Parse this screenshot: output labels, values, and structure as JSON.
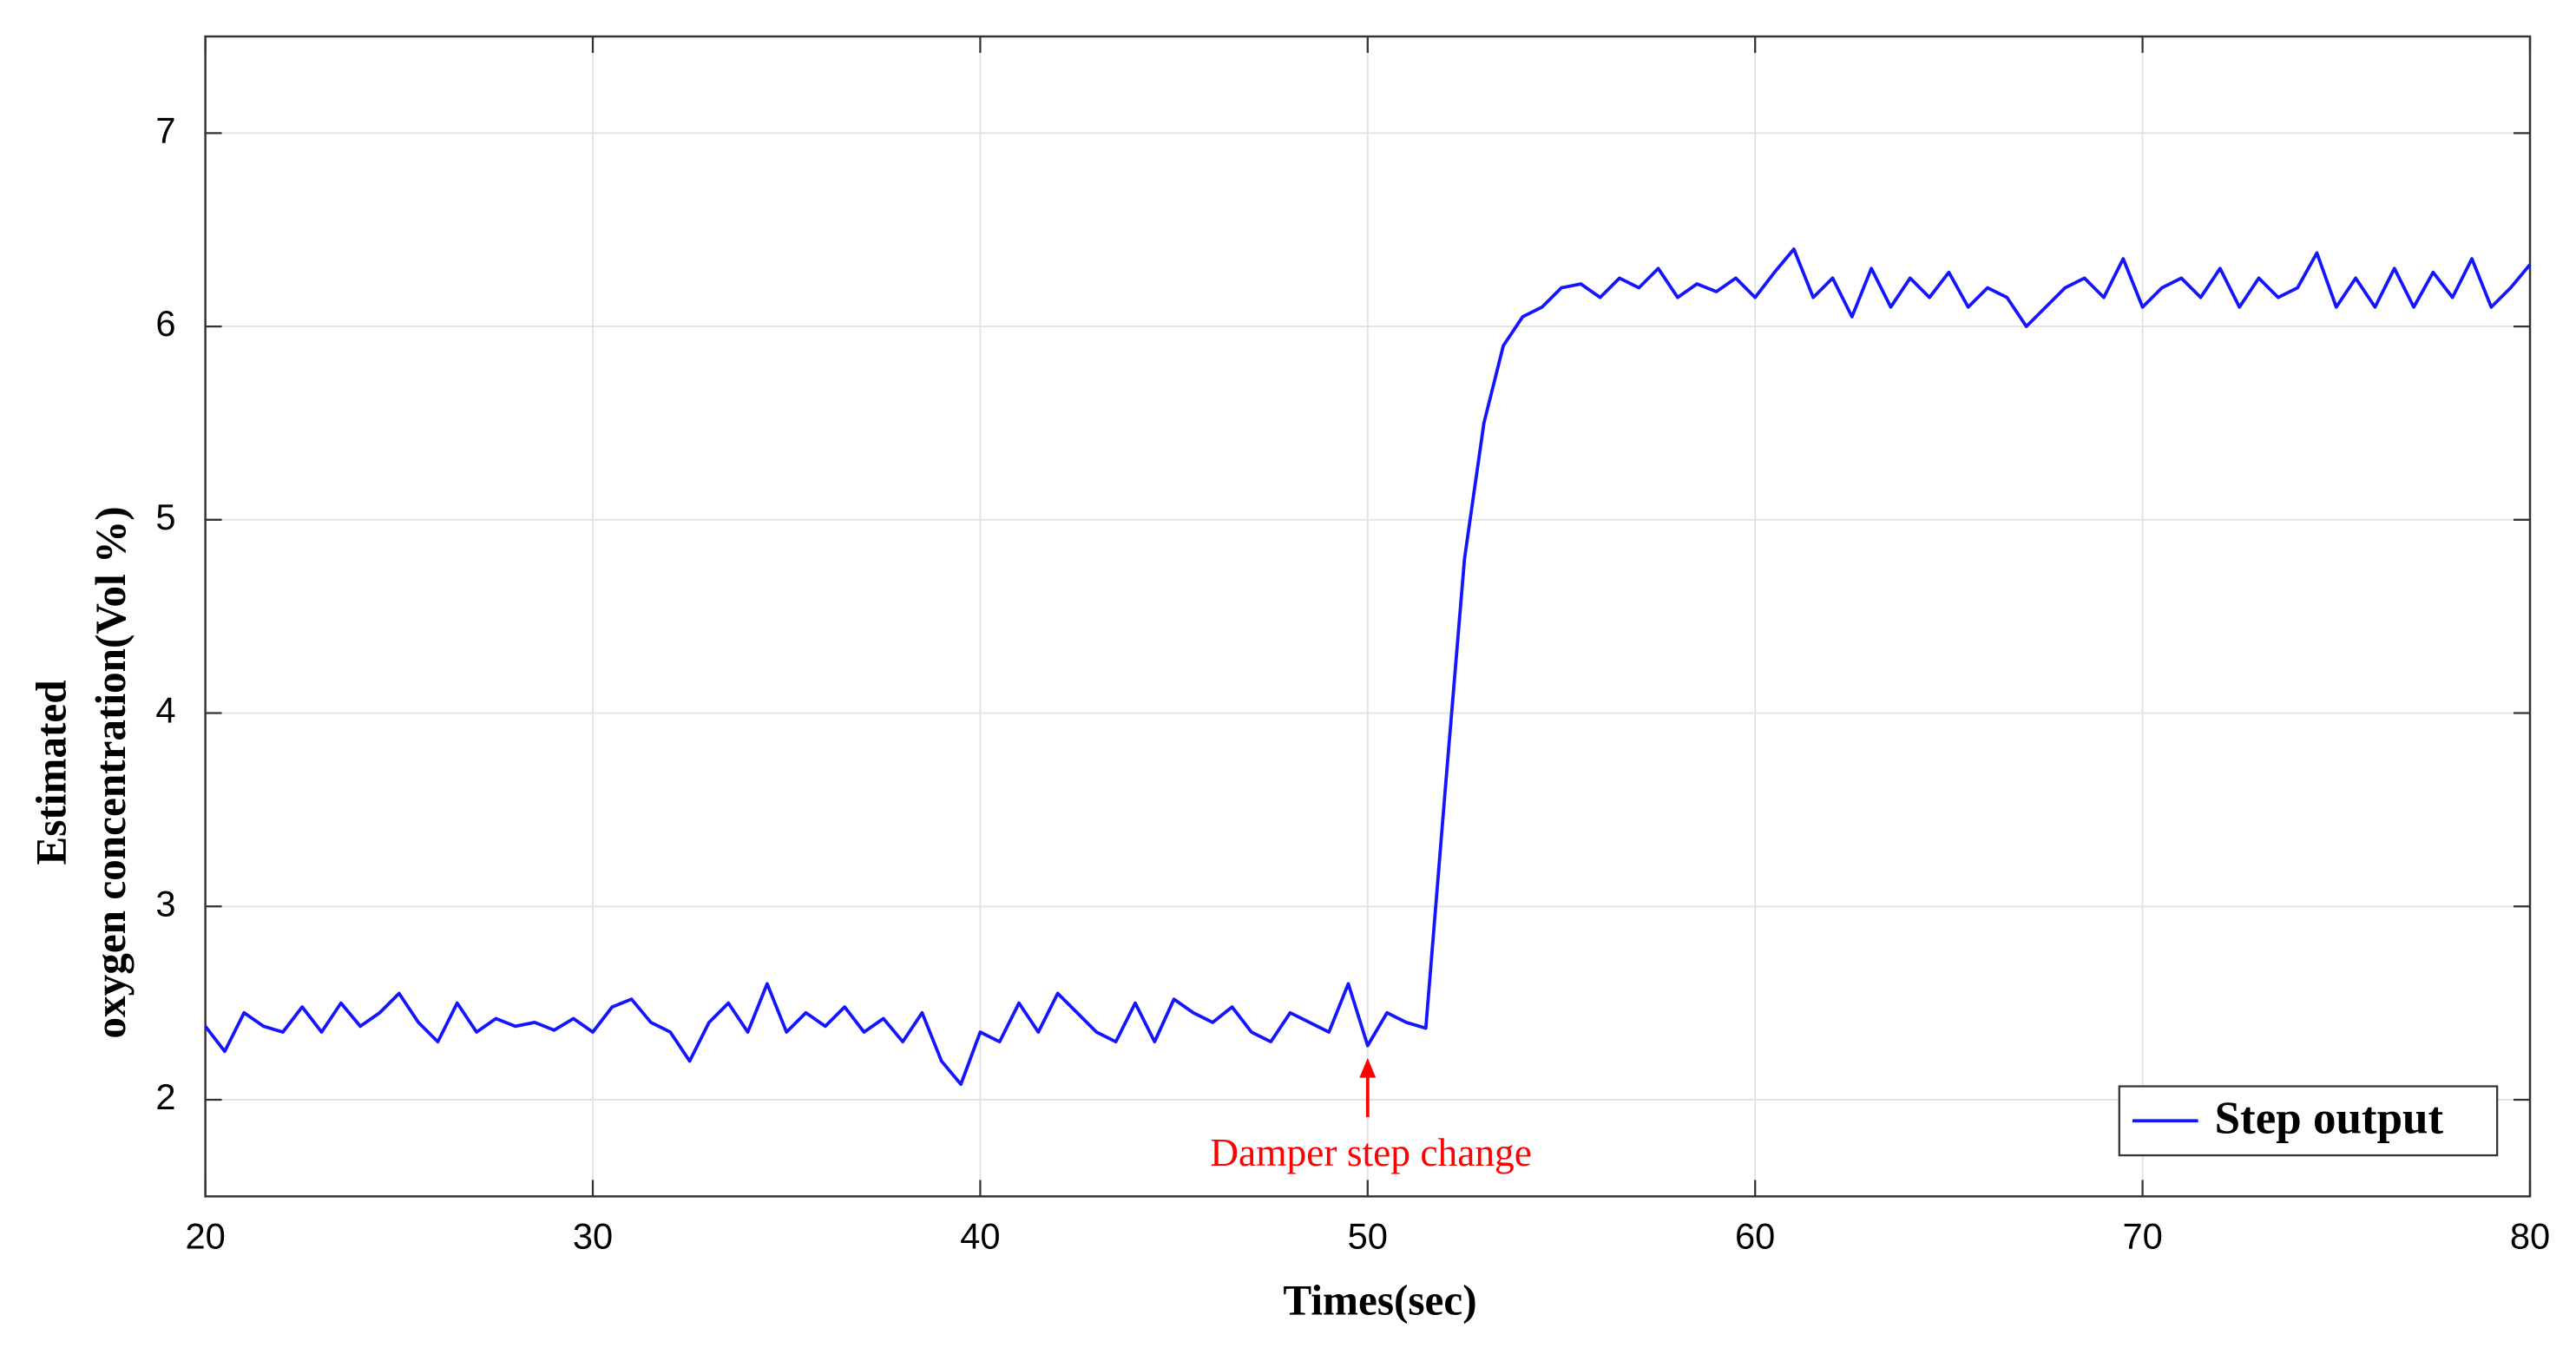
{
  "chart_data": {
    "type": "line",
    "xlabel": "Times(sec)",
    "ylabel": [
      "Estimated",
      "oxygen concentration(Vol %)"
    ],
    "x": [
      20,
      20.5,
      21,
      21.5,
      22,
      22.5,
      23,
      23.5,
      24,
      24.5,
      25,
      25.5,
      26,
      26.5,
      27,
      27.5,
      28,
      28.5,
      29,
      29.5,
      30,
      30.5,
      31,
      31.5,
      32,
      32.5,
      33,
      33.5,
      34,
      34.5,
      35,
      35.5,
      36,
      36.5,
      37,
      37.5,
      38,
      38.5,
      39,
      39.5,
      40,
      40.5,
      41,
      41.5,
      42,
      42.5,
      43,
      43.5,
      44,
      44.5,
      45,
      45.5,
      46,
      46.5,
      47,
      47.5,
      48,
      48.5,
      49,
      49.5,
      50,
      50.5,
      51,
      51.5,
      52,
      52.5,
      53,
      53.5,
      54,
      54.5,
      55,
      55.5,
      56,
      56.5,
      57,
      57.5,
      58,
      58.5,
      59,
      59.5,
      60,
      60.5,
      61,
      61.5,
      62,
      62.5,
      63,
      63.5,
      64,
      64.5,
      65,
      65.5,
      66,
      66.5,
      67,
      67.5,
      68,
      68.5,
      69,
      69.5,
      70,
      70.5,
      71,
      71.5,
      72,
      72.5,
      73,
      73.5,
      74,
      74.5,
      75,
      75.5,
      76,
      76.5,
      77,
      77.5,
      78,
      78.5,
      79,
      79.5,
      80
    ],
    "series": [
      {
        "name": "Step output",
        "color": "#1414ff",
        "values": [
          2.38,
          2.25,
          2.45,
          2.38,
          2.35,
          2.48,
          2.35,
          2.5,
          2.38,
          2.45,
          2.55,
          2.4,
          2.3,
          2.5,
          2.35,
          2.42,
          2.38,
          2.4,
          2.36,
          2.42,
          2.35,
          2.48,
          2.52,
          2.4,
          2.35,
          2.2,
          2.4,
          2.5,
          2.35,
          2.6,
          2.35,
          2.45,
          2.38,
          2.48,
          2.35,
          2.42,
          2.3,
          2.45,
          2.2,
          2.08,
          2.35,
          2.3,
          2.5,
          2.35,
          2.55,
          2.45,
          2.35,
          2.3,
          2.5,
          2.3,
          2.52,
          2.45,
          2.4,
          2.48,
          2.35,
          2.3,
          2.45,
          2.4,
          2.35,
          2.6,
          2.28,
          2.45,
          2.4,
          2.37,
          3.6,
          4.8,
          5.5,
          5.9,
          6.05,
          6.1,
          6.2,
          6.22,
          6.15,
          6.25,
          6.2,
          6.3,
          6.15,
          6.22,
          6.18,
          6.25,
          6.15,
          6.28,
          6.4,
          6.15,
          6.25,
          6.05,
          6.3,
          6.1,
          6.25,
          6.15,
          6.28,
          6.1,
          6.2,
          6.15,
          6.0,
          6.1,
          6.2,
          6.25,
          6.15,
          6.35,
          6.1,
          6.2,
          6.25,
          6.15,
          6.3,
          6.1,
          6.25,
          6.15,
          6.2,
          6.38,
          6.1,
          6.25,
          6.1,
          6.3,
          6.1,
          6.28,
          6.15,
          6.35,
          6.1,
          6.2,
          6.32
        ]
      }
    ],
    "annotations": [
      {
        "text": "Damper step change",
        "x": 50,
        "y": 2.25,
        "color": "#ff0000"
      }
    ],
    "xlim": [
      20,
      80
    ],
    "xticks": [
      20,
      30,
      40,
      50,
      60,
      70,
      80
    ],
    "ylim": [
      1.5,
      7.5
    ],
    "yticks": [
      2,
      3,
      4,
      5,
      6,
      7
    ],
    "grid": true,
    "legend": "lower right"
  }
}
